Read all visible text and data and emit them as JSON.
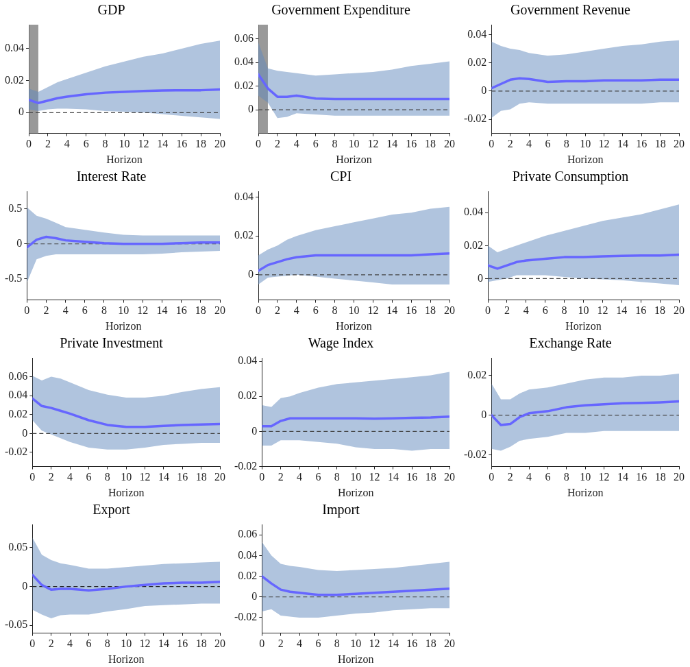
{
  "chart_data": [
    {
      "type": "line",
      "title": "GDP",
      "xlabel": "Horizon",
      "x": [
        0,
        1,
        2,
        3,
        4,
        6,
        8,
        10,
        12,
        14,
        16,
        18,
        20
      ],
      "xlim": [
        0,
        20
      ],
      "xticks": [
        0,
        2,
        4,
        6,
        8,
        10,
        12,
        14,
        16,
        18,
        20
      ],
      "ylim": [
        -0.013,
        0.055
      ],
      "yticks": [
        0,
        0.02,
        0.04
      ],
      "series": [
        {
          "color": "#6666ff",
          "values": [
            0.008,
            0.006,
            0.0075,
            0.009,
            0.01,
            0.0115,
            0.0125,
            0.013,
            0.0135,
            0.0138,
            0.014,
            0.014,
            0.0145
          ],
          "upper": [
            0.015,
            0.013,
            0.016,
            0.019,
            0.021,
            0.025,
            0.029,
            0.032,
            0.035,
            0.037,
            0.04,
            0.043,
            0.045
          ],
          "lower": [
            0.002,
            0.001,
            0.002,
            0.0025,
            0.0025,
            0.002,
            0.001,
            0.0005,
            0,
            -0.001,
            -0.002,
            -0.003,
            -0.004
          ]
        }
      ],
      "ref_lines": [
        {
          "axis": "y",
          "value": 0,
          "color": "#444444",
          "line_style": "dashed"
        }
      ],
      "bands": [
        {
          "axis": "x",
          "from": 0,
          "to": 1,
          "color": "#808080"
        }
      ]
    },
    {
      "type": "line",
      "title": "Government Expenditure",
      "xlabel": "Horizon",
      "x": [
        0,
        1,
        2,
        3,
        4,
        6,
        8,
        10,
        12,
        14,
        16,
        18,
        20
      ],
      "xlim": [
        0,
        20
      ],
      "xticks": [
        0,
        2,
        4,
        6,
        8,
        10,
        12,
        14,
        16,
        18,
        20
      ],
      "ylim": [
        -0.02,
        0.072
      ],
      "yticks": [
        0,
        0.02,
        0.04,
        0.06
      ],
      "series": [
        {
          "color": "#6666ff",
          "values": [
            0.03,
            0.018,
            0.011,
            0.011,
            0.012,
            0.0095,
            0.009,
            0.009,
            0.009,
            0.009,
            0.009,
            0.009,
            0.009
          ],
          "upper": [
            0.057,
            0.035,
            0.033,
            0.032,
            0.031,
            0.029,
            0.03,
            0.031,
            0.032,
            0.034,
            0.037,
            0.039,
            0.041
          ],
          "lower": [
            0.012,
            0.006,
            -0.007,
            -0.006,
            -0.003,
            -0.004,
            -0.005,
            -0.005,
            -0.005,
            -0.005,
            -0.005,
            -0.005,
            -0.005
          ]
        }
      ],
      "ref_lines": [
        {
          "axis": "y",
          "value": 0,
          "color": "#444444",
          "line_style": "dashed"
        }
      ],
      "bands": [
        {
          "axis": "x",
          "from": 0,
          "to": 1,
          "color": "#808080"
        }
      ]
    },
    {
      "type": "line",
      "title": "Government Revenue",
      "xlabel": "Horizon",
      "x": [
        0,
        1,
        2,
        3,
        4,
        6,
        8,
        10,
        12,
        14,
        16,
        18,
        20
      ],
      "xlim": [
        0,
        20
      ],
      "xticks": [
        0,
        2,
        4,
        6,
        8,
        10,
        12,
        14,
        16,
        18,
        20
      ],
      "ylim": [
        -0.03,
        0.047
      ],
      "yticks": [
        -0.02,
        0,
        0.02,
        0.04
      ],
      "series": [
        {
          "color": "#6666ff",
          "values": [
            0.002,
            0.005,
            0.008,
            0.009,
            0.0085,
            0.0065,
            0.007,
            0.007,
            0.0075,
            0.0075,
            0.0075,
            0.008,
            0.008
          ],
          "upper": [
            0.035,
            0.032,
            0.03,
            0.029,
            0.027,
            0.025,
            0.026,
            0.028,
            0.03,
            0.032,
            0.033,
            0.035,
            0.036
          ],
          "lower": [
            -0.019,
            -0.014,
            -0.013,
            -0.009,
            -0.008,
            -0.009,
            -0.009,
            -0.009,
            -0.009,
            -0.009,
            -0.009,
            -0.008,
            -0.008
          ]
        }
      ],
      "ref_lines": [
        {
          "axis": "y",
          "value": 0,
          "color": "#444444",
          "line_style": "dashed"
        }
      ]
    },
    {
      "type": "line",
      "title": "Interest Rate",
      "xlabel": "Horizon",
      "x": [
        0,
        1,
        2,
        3,
        4,
        6,
        8,
        10,
        12,
        14,
        16,
        18,
        20
      ],
      "xlim": [
        0,
        20
      ],
      "xticks": [
        0,
        2,
        4,
        6,
        8,
        10,
        12,
        14,
        16,
        18,
        20
      ],
      "ylim": [
        -0.8,
        0.75
      ],
      "yticks": [
        -0.5,
        0,
        0.5
      ],
      "series": [
        {
          "color": "#6666ff",
          "values": [
            -0.05,
            0.06,
            0.1,
            0.08,
            0.05,
            0.03,
            0.01,
            0,
            0,
            0,
            0.01,
            0.02,
            0.02
          ],
          "upper": [
            0.52,
            0.4,
            0.36,
            0.3,
            0.24,
            0.2,
            0.16,
            0.13,
            0.12,
            0.12,
            0.12,
            0.12,
            0.12
          ],
          "lower": [
            -0.55,
            -0.22,
            -0.17,
            -0.15,
            -0.15,
            -0.15,
            -0.15,
            -0.15,
            -0.15,
            -0.14,
            -0.12,
            -0.11,
            -0.1
          ]
        }
      ],
      "ref_lines": [
        {
          "axis": "y",
          "value": 0,
          "color": "#444444",
          "line_style": "dashed"
        }
      ]
    },
    {
      "type": "line",
      "title": "CPI",
      "xlabel": "Horizon",
      "x": [
        0,
        1,
        2,
        3,
        4,
        6,
        8,
        10,
        12,
        14,
        16,
        18,
        20
      ],
      "xlim": [
        0,
        20
      ],
      "xticks": [
        0,
        2,
        4,
        6,
        8,
        10,
        12,
        14,
        16,
        18,
        20
      ],
      "ylim": [
        -0.013,
        0.043
      ],
      "yticks": [
        0,
        0.02,
        0.04
      ],
      "series": [
        {
          "color": "#6666ff",
          "values": [
            0.002,
            0.005,
            0.0065,
            0.008,
            0.009,
            0.01,
            0.01,
            0.01,
            0.01,
            0.01,
            0.01,
            0.0105,
            0.011
          ],
          "upper": [
            0.01,
            0.013,
            0.015,
            0.018,
            0.02,
            0.023,
            0.025,
            0.027,
            0.029,
            0.031,
            0.032,
            0.034,
            0.035
          ],
          "lower": [
            -0.005,
            -0.0015,
            -0.001,
            -0.0005,
            0,
            -0.001,
            -0.002,
            -0.003,
            -0.004,
            -0.005,
            -0.005,
            -0.005,
            -0.005
          ]
        }
      ],
      "ref_lines": [
        {
          "axis": "y",
          "value": 0,
          "color": "#444444",
          "line_style": "dashed"
        }
      ]
    },
    {
      "type": "line",
      "title": "Private Consumption",
      "xlabel": "Horizon",
      "x": [
        0,
        1,
        2,
        3,
        4,
        6,
        8,
        10,
        12,
        14,
        16,
        18,
        20
      ],
      "xlim": [
        0,
        20
      ],
      "xticks": [
        0,
        2,
        4,
        6,
        8,
        10,
        12,
        14,
        16,
        18,
        20
      ],
      "ylim": [
        -0.013,
        0.053
      ],
      "yticks": [
        0,
        0.02,
        0.04
      ],
      "series": [
        {
          "color": "#6666ff",
          "values": [
            0.008,
            0.006,
            0.008,
            0.01,
            0.011,
            0.012,
            0.013,
            0.013,
            0.0135,
            0.0138,
            0.014,
            0.014,
            0.0145
          ],
          "upper": [
            0.02,
            0.016,
            0.018,
            0.02,
            0.022,
            0.026,
            0.029,
            0.032,
            0.035,
            0.037,
            0.039,
            0.042,
            0.045
          ],
          "lower": [
            -0.002,
            -0.001,
            0,
            0.002,
            0.002,
            0.002,
            0.001,
            0,
            -0.0005,
            -0.001,
            -0.002,
            -0.003,
            -0.004
          ]
        }
      ],
      "ref_lines": [
        {
          "axis": "y",
          "value": 0,
          "color": "#444444",
          "line_style": "dashed"
        }
      ]
    },
    {
      "type": "line",
      "title": "Private Investment",
      "xlabel": "Horizon",
      "x": [
        0,
        1,
        2,
        3,
        4,
        6,
        8,
        10,
        12,
        14,
        16,
        18,
        20
      ],
      "xlim": [
        0,
        20
      ],
      "xticks": [
        0,
        2,
        4,
        6,
        8,
        10,
        12,
        14,
        16,
        18,
        20
      ],
      "ylim": [
        -0.035,
        0.08
      ],
      "yticks": [
        -0.02,
        0,
        0.02,
        0.04,
        0.06
      ],
      "series": [
        {
          "color": "#6666ff",
          "values": [
            0.037,
            0.029,
            0.027,
            0.024,
            0.021,
            0.014,
            0.009,
            0.007,
            0.007,
            0.008,
            0.009,
            0.0095,
            0.01
          ],
          "upper": [
            0.061,
            0.056,
            0.06,
            0.058,
            0.054,
            0.046,
            0.041,
            0.038,
            0.038,
            0.04,
            0.044,
            0.047,
            0.049
          ],
          "lower": [
            0.014,
            0.003,
            -0.001,
            -0.005,
            -0.009,
            -0.015,
            -0.017,
            -0.017,
            -0.015,
            -0.012,
            -0.011,
            -0.01,
            -0.01
          ]
        }
      ],
      "ref_lines": [
        {
          "axis": "y",
          "value": 0,
          "color": "#444444",
          "line_style": "dashed"
        }
      ]
    },
    {
      "type": "line",
      "title": "Wage Index",
      "xlabel": "Horizon",
      "x": [
        0,
        1,
        2,
        3,
        4,
        6,
        8,
        10,
        12,
        14,
        16,
        18,
        20
      ],
      "xlim": [
        0,
        20
      ],
      "xticks": [
        0,
        2,
        4,
        6,
        8,
        10,
        12,
        14,
        16,
        18,
        20
      ],
      "ylim": [
        -0.02,
        0.042
      ],
      "yticks": [
        -0.02,
        0,
        0.02,
        0.04
      ],
      "series": [
        {
          "color": "#6666ff",
          "values": [
            0.003,
            0.003,
            0.006,
            0.0075,
            0.0075,
            0.0075,
            0.0075,
            0.0075,
            0.0073,
            0.0075,
            0.0078,
            0.008,
            0.0085
          ],
          "upper": [
            0.015,
            0.014,
            0.019,
            0.02,
            0.022,
            0.025,
            0.027,
            0.028,
            0.029,
            0.03,
            0.031,
            0.032,
            0.034
          ],
          "lower": [
            -0.008,
            -0.008,
            -0.005,
            -0.005,
            -0.005,
            -0.006,
            -0.007,
            -0.009,
            -0.01,
            -0.01,
            -0.011,
            -0.01,
            -0.01
          ]
        }
      ],
      "ref_lines": [
        {
          "axis": "y",
          "value": 0,
          "color": "#444444",
          "line_style": "dashed"
        }
      ]
    },
    {
      "type": "line",
      "title": "Exchange Rate",
      "xlabel": "Horizon",
      "x": [
        0,
        1,
        2,
        3,
        4,
        6,
        8,
        10,
        12,
        14,
        16,
        18,
        20
      ],
      "xlim": [
        0,
        20
      ],
      "xticks": [
        0,
        2,
        4,
        6,
        8,
        10,
        12,
        14,
        16,
        18,
        20
      ],
      "ylim": [
        -0.026,
        0.029
      ],
      "yticks": [
        -0.02,
        0,
        0.02
      ],
      "series": [
        {
          "color": "#6666ff",
          "values": [
            0,
            -0.005,
            -0.0045,
            -0.001,
            0.001,
            0.002,
            0.004,
            0.005,
            0.0055,
            0.006,
            0.0062,
            0.0065,
            0.007
          ],
          "upper": [
            0.016,
            0.008,
            0.008,
            0.011,
            0.013,
            0.014,
            0.016,
            0.018,
            0.019,
            0.019,
            0.02,
            0.02,
            0.021
          ],
          "lower": [
            -0.017,
            -0.018,
            -0.016,
            -0.013,
            -0.012,
            -0.011,
            -0.009,
            -0.009,
            -0.008,
            -0.008,
            -0.008,
            -0.008,
            -0.008
          ]
        }
      ],
      "ref_lines": [
        {
          "axis": "y",
          "value": 0,
          "color": "#444444",
          "line_style": "dashed"
        }
      ]
    },
    {
      "type": "line",
      "title": "Export",
      "xlabel": "Horizon",
      "x": [
        0,
        1,
        2,
        3,
        4,
        6,
        8,
        10,
        12,
        14,
        16,
        18,
        20
      ],
      "xlim": [
        0,
        20
      ],
      "xticks": [
        0,
        2,
        4,
        6,
        8,
        10,
        12,
        14,
        16,
        18,
        20
      ],
      "ylim": [
        -0.06,
        0.08
      ],
      "yticks": [
        -0.05,
        0,
        0.05
      ],
      "series": [
        {
          "color": "#6666ff",
          "values": [
            0.015,
            0.002,
            -0.004,
            -0.003,
            -0.003,
            -0.005,
            -0.003,
            0,
            0.002,
            0.004,
            0.005,
            0.005,
            0.006
          ],
          "upper": [
            0.063,
            0.041,
            0.034,
            0.03,
            0.028,
            0.023,
            0.023,
            0.025,
            0.027,
            0.029,
            0.03,
            0.031,
            0.032
          ],
          "lower": [
            -0.03,
            -0.036,
            -0.041,
            -0.037,
            -0.036,
            -0.036,
            -0.032,
            -0.029,
            -0.025,
            -0.024,
            -0.023,
            -0.022,
            -0.022
          ]
        }
      ],
      "ref_lines": [
        {
          "axis": "y",
          "value": 0,
          "color": "#222222",
          "line_style": "dashed"
        }
      ]
    },
    {
      "type": "line",
      "title": "Import",
      "xlabel": "Horizon",
      "x": [
        0,
        1,
        2,
        3,
        4,
        6,
        8,
        10,
        12,
        14,
        16,
        18,
        20
      ],
      "xlim": [
        0,
        20
      ],
      "xticks": [
        0,
        2,
        4,
        6,
        8,
        10,
        12,
        14,
        16,
        18,
        20
      ],
      "ylim": [
        -0.035,
        0.07
      ],
      "yticks": [
        -0.02,
        0,
        0.02,
        0.04,
        0.06
      ],
      "series": [
        {
          "color": "#6666ff",
          "values": [
            0.02,
            0.013,
            0.007,
            0.005,
            0.004,
            0.002,
            0.002,
            0.003,
            0.004,
            0.005,
            0.006,
            0.007,
            0.008
          ],
          "upper": [
            0.053,
            0.04,
            0.032,
            0.03,
            0.029,
            0.026,
            0.025,
            0.026,
            0.027,
            0.028,
            0.03,
            0.032,
            0.034
          ],
          "lower": [
            -0.014,
            -0.012,
            -0.018,
            -0.019,
            -0.02,
            -0.02,
            -0.018,
            -0.016,
            -0.015,
            -0.013,
            -0.012,
            -0.011,
            -0.011
          ]
        }
      ],
      "ref_lines": [
        {
          "axis": "y",
          "value": 0,
          "color": "#444444",
          "line_style": "dashed"
        }
      ]
    }
  ]
}
